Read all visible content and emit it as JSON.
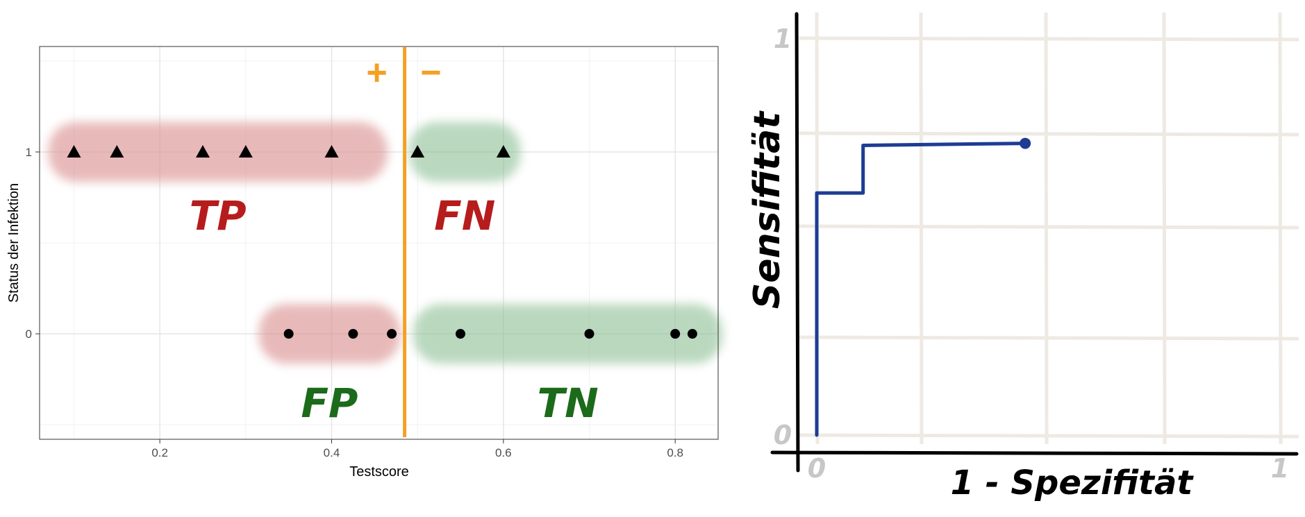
{
  "chart_data": [
    {
      "type": "scatter",
      "xlabel": "Testscore",
      "ylabel": "Status der Infektion",
      "xlim": [
        0.06,
        0.85
      ],
      "ylim": [
        -0.58,
        1.58
      ],
      "x_ticks": [
        0.2,
        0.4,
        0.6,
        0.8
      ],
      "x_tick_labels": [
        "0.2",
        "0.4",
        "0.6",
        "0.8"
      ],
      "y_ticks": [
        0,
        1
      ],
      "y_tick_labels": [
        "0",
        "1"
      ],
      "grid": true,
      "threshold": 0.485,
      "threshold_labels": {
        "left": "+",
        "right": "−"
      },
      "series": [
        {
          "marker": "triangle",
          "x": [
            0.1,
            0.15,
            0.25,
            0.3,
            0.4,
            0.5,
            0.6
          ],
          "y": [
            1,
            1,
            1,
            1,
            1,
            1,
            1
          ]
        },
        {
          "marker": "circle",
          "x": [
            0.35,
            0.425,
            0.47,
            0.55,
            0.7,
            0.8,
            0.82
          ],
          "y": [
            0,
            0,
            0,
            0,
            0,
            0,
            0
          ]
        }
      ],
      "regions": [
        {
          "label": "TP",
          "color": "#b71c1c",
          "fill": "#d98c8c",
          "x": [
            0.07,
            0.465
          ],
          "y": 1
        },
        {
          "label": "FN",
          "color": "#b71c1c",
          "fill": "#8cbf94",
          "x": [
            0.49,
            0.62
          ],
          "y": 1
        },
        {
          "label": "FP",
          "color": "#1b6b1b",
          "fill": "#d98c8c",
          "x": [
            0.315,
            0.48
          ],
          "y": 0
        },
        {
          "label": "TN",
          "color": "#1b6b1b",
          "fill": "#8cbf94",
          "x": [
            0.495,
            0.855
          ],
          "y": 0
        }
      ],
      "colors": {
        "threshold": "#f4a024",
        "points": "#000000"
      }
    },
    {
      "type": "line",
      "xlabel": "1 - Spezifität",
      "ylabel": "Sensifität",
      "xlim": [
        0,
        1
      ],
      "ylim": [
        0,
        1
      ],
      "x_tick_labels": [
        "0",
        "1"
      ],
      "y_tick_labels": [
        "0",
        "1"
      ],
      "grid": true,
      "series": [
        {
          "x": [
            0.0,
            0.0,
            0.1,
            0.1,
            0.45
          ],
          "y": [
            0.0,
            0.61,
            0.61,
            0.73,
            0.735
          ]
        }
      ],
      "colors": {
        "line": "#1d3c94",
        "grid": "#eeeae3",
        "axis": "#000000",
        "tick_label": "#c7c7c7"
      }
    }
  ]
}
